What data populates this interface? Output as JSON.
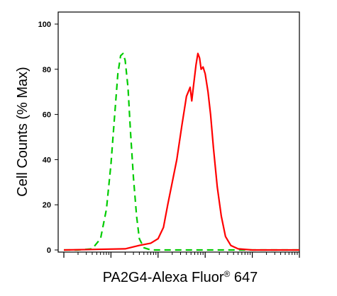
{
  "chart_data": {
    "type": "line",
    "xlabel": "PA2G4-Alexa Fluor",
    "xlabel_superscript": "®",
    "xlabel_suffix": " 647",
    "ylabel": "Cell Counts (% Max)",
    "ylim": [
      0,
      100
    ],
    "yticks": [
      "0",
      "20",
      "40",
      "60",
      "80",
      "100"
    ],
    "ytick_values": [
      0,
      20,
      40,
      60,
      80,
      100
    ],
    "xscale": "log",
    "xlim": [
      1,
      100000
    ],
    "grid": false,
    "legend": "none",
    "series": [
      {
        "color": "#00cc00",
        "style": "dashed",
        "points": [
          [
            1,
            0
          ],
          [
            2,
            0
          ],
          [
            4,
            0.5
          ],
          [
            6,
            5
          ],
          [
            8,
            18
          ],
          [
            10,
            38
          ],
          [
            12,
            60
          ],
          [
            14,
            78
          ],
          [
            16,
            86
          ],
          [
            18,
            87
          ],
          [
            20,
            84
          ],
          [
            23,
            72
          ],
          [
            26,
            52
          ],
          [
            30,
            32
          ],
          [
            35,
            15
          ],
          [
            40,
            5
          ],
          [
            50,
            1
          ],
          [
            70,
            0
          ],
          [
            100000,
            0
          ]
        ]
      },
      {
        "color": "#ff0000",
        "style": "solid",
        "points": [
          [
            1,
            0
          ],
          [
            20,
            0.5
          ],
          [
            40,
            2
          ],
          [
            70,
            3
          ],
          [
            100,
            5
          ],
          [
            130,
            10
          ],
          [
            160,
            20
          ],
          [
            200,
            30
          ],
          [
            250,
            40
          ],
          [
            320,
            55
          ],
          [
            400,
            68
          ],
          [
            480,
            72
          ],
          [
            520,
            66
          ],
          [
            560,
            72
          ],
          [
            640,
            82
          ],
          [
            700,
            87
          ],
          [
            760,
            85
          ],
          [
            820,
            80
          ],
          [
            900,
            81
          ],
          [
            1000,
            78
          ],
          [
            1150,
            70
          ],
          [
            1300,
            60
          ],
          [
            1500,
            45
          ],
          [
            1800,
            28
          ],
          [
            2200,
            15
          ],
          [
            2700,
            6
          ],
          [
            3500,
            2
          ],
          [
            5000,
            0.5
          ],
          [
            10000,
            0
          ],
          [
            100000,
            0
          ]
        ]
      }
    ]
  }
}
